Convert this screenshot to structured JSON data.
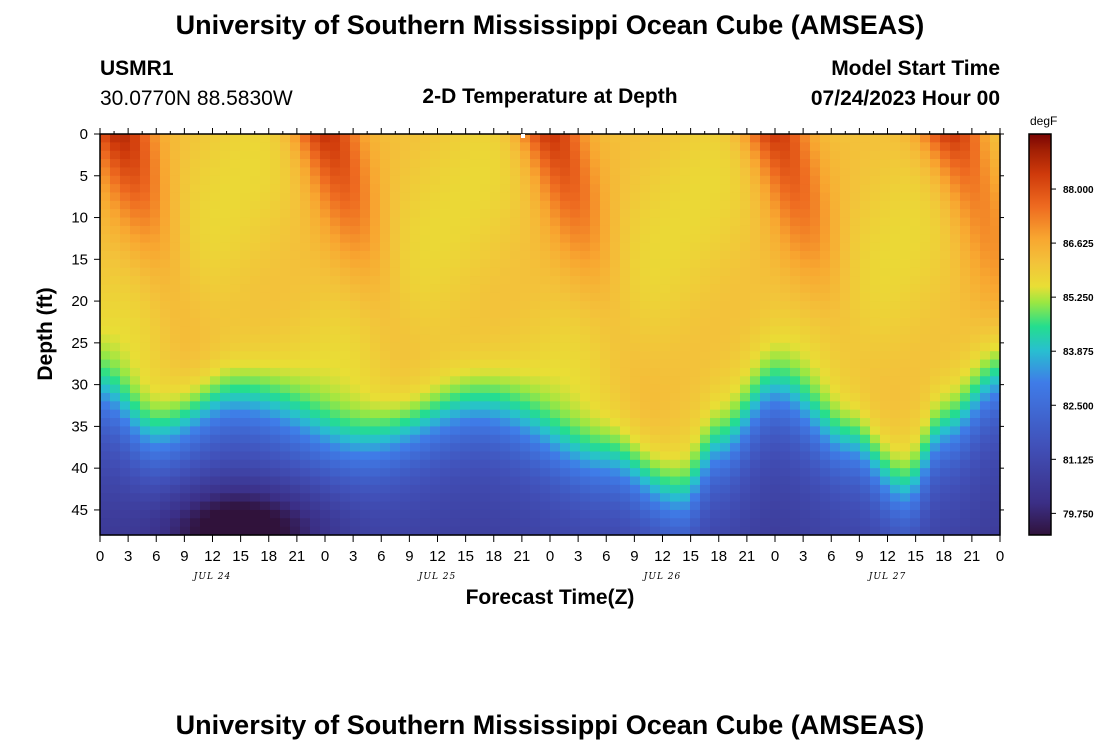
{
  "header": {
    "title": "University of Southern Mississippi Ocean Cube (AMSEAS)",
    "station": "USMR1",
    "coords": "30.0770N  88.5830W",
    "subtitle": "2-D Temperature at Depth",
    "model_start_label": "Model Start Time",
    "model_start_value": "07/24/2023 Hour 00"
  },
  "footer": {
    "title": "University of Southern Mississippi Ocean Cube (AMSEAS)"
  },
  "chart_data": {
    "type": "heatmap",
    "title": "2-D Temperature at Depth",
    "xlabel": "Forecast Time(Z)",
    "ylabel": "Depth (ft)",
    "x_hours_range": [
      0,
      96
    ],
    "x_tick_labels": [
      "0",
      "3",
      "6",
      "9",
      "12",
      "15",
      "18",
      "21",
      "0",
      "3",
      "6",
      "9",
      "12",
      "15",
      "18",
      "21",
      "0",
      "3",
      "6",
      "9",
      "12",
      "15",
      "18",
      "21",
      "0",
      "3",
      "6",
      "9",
      "12",
      "15",
      "18",
      "21",
      "0"
    ],
    "day_labels": [
      {
        "label": "JUL 24",
        "hour": 12
      },
      {
        "label": "JUL 25",
        "hour": 36
      },
      {
        "label": "JUL 26",
        "hour": 60
      },
      {
        "label": "JUL 27",
        "hour": 84
      }
    ],
    "y_range_ft": [
      0,
      48
    ],
    "y_ticks": [
      0,
      5,
      10,
      15,
      20,
      25,
      30,
      35,
      40,
      45
    ],
    "colorbar": {
      "unit": "degF",
      "range": [
        79.2,
        89.4
      ],
      "ticks": [
        88.0,
        86.625,
        85.25,
        83.875,
        82.5,
        81.125,
        79.75
      ],
      "tick_labels": [
        "88.000",
        "86.625",
        "85.250",
        "83.875",
        "82.500",
        "81.125",
        "79.750"
      ]
    },
    "thermocline": {
      "hours": [
        0,
        6,
        14,
        28,
        40,
        54,
        62,
        66,
        72,
        80,
        86,
        90,
        96
      ],
      "depth_ft": [
        31,
        36,
        32,
        37,
        33,
        39,
        44,
        38,
        31,
        37,
        43,
        36,
        30
      ]
    },
    "surface_warm_maxima_hours": [
      2,
      24,
      48,
      72,
      91
    ],
    "surface_temp_degF": {
      "mixed_layer": 85.9,
      "warm_peak": 88.6
    },
    "deep_temp_degF": {
      "typical": 81.5,
      "minimum": 79.4,
      "minimum_at": {
        "hour": 15,
        "depth_ft": 47
      }
    }
  }
}
